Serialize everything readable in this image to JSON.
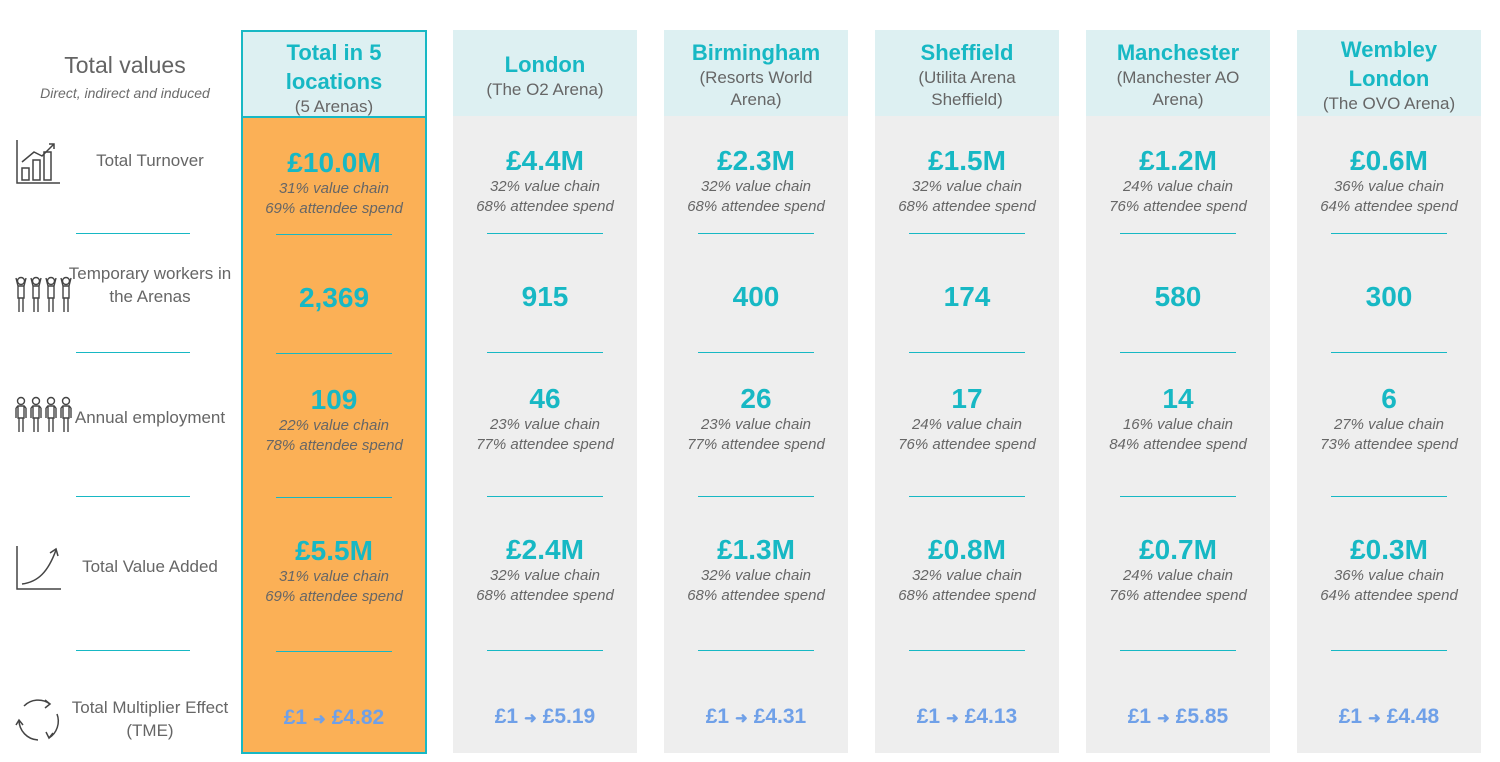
{
  "side": {
    "title": "Total values",
    "subtitle": "Direct, indirect and induced",
    "rows": [
      {
        "label": "Total Turnover",
        "icon": "bar-chart-icon"
      },
      {
        "label": "Temporary workers in the Arenas",
        "icon": "people-group-icon"
      },
      {
        "label": "Annual employment",
        "icon": "people-group-icon"
      },
      {
        "label": "Total Value Added",
        "icon": "growth-curve-icon"
      },
      {
        "label": "Total Multiplier Effect (TME)",
        "icon": "cycle-arrows-icon"
      }
    ]
  },
  "columns": [
    {
      "title": "Total in 5 locations",
      "title_lines": [
        "Total in 5",
        "locations"
      ],
      "subtitle_lines": [
        "(5 Arenas)"
      ],
      "turnover": "£10.0M",
      "turnover_vc": "31% value chain",
      "turnover_as": "69% attendee spend",
      "temp_workers": "2,369",
      "employment": "109",
      "employment_vc": "22% value chain",
      "employment_as": "78% attendee spend",
      "gva": "£5.5M",
      "gva_vc": "31% value chain",
      "gva_as": "69% attendee spend",
      "tme_from": "£1",
      "tme_to": "£4.82"
    },
    {
      "title_lines": [
        "London"
      ],
      "subtitle_lines": [
        "(The O2 Arena)"
      ],
      "turnover": "£4.4M",
      "turnover_vc": "32% value chain",
      "turnover_as": "68% attendee spend",
      "temp_workers": "915",
      "employment": "46",
      "employment_vc": "23% value chain",
      "employment_as": "77% attendee spend",
      "gva": "£2.4M",
      "gva_vc": "32% value chain",
      "gva_as": "68% attendee spend",
      "tme_from": "£1",
      "tme_to": "£5.19"
    },
    {
      "title_lines": [
        "Birmingham"
      ],
      "subtitle_lines": [
        "(Resorts World",
        "Arena)"
      ],
      "turnover": "£2.3M",
      "turnover_vc": "32% value chain",
      "turnover_as": "68% attendee spend",
      "temp_workers": "400",
      "employment": "26",
      "employment_vc": "23% value chain",
      "employment_as": "77% attendee spend",
      "gva": "£1.3M",
      "gva_vc": "32% value chain",
      "gva_as": "68% attendee spend",
      "tme_from": "£1",
      "tme_to": "£4.31"
    },
    {
      "title_lines": [
        "Sheffield"
      ],
      "subtitle_lines": [
        "(Utilita Arena",
        "Sheffield)"
      ],
      "turnover": "£1.5M",
      "turnover_vc": "32% value chain",
      "turnover_as": "68% attendee spend",
      "temp_workers": "174",
      "employment": "17",
      "employment_vc": "24% value chain",
      "employment_as": "76% attendee spend",
      "gva": "£0.8M",
      "gva_vc": "32% value chain",
      "gva_as": "68% attendee spend",
      "tme_from": "£1",
      "tme_to": "£4.13"
    },
    {
      "title_lines": [
        "Manchester"
      ],
      "subtitle_lines": [
        "(Manchester AO",
        "Arena)"
      ],
      "turnover": "£1.2M",
      "turnover_vc": "24% value chain",
      "turnover_as": "76% attendee spend",
      "temp_workers": "580",
      "employment": "14",
      "employment_vc": "16% value chain",
      "employment_as": "84% attendee spend",
      "gva": "£0.7M",
      "gva_vc": "24% value chain",
      "gva_as": "76% attendee spend",
      "tme_from": "£1",
      "tme_to": "£5.85"
    },
    {
      "title_lines": [
        "Wembley",
        "London"
      ],
      "subtitle_lines": [
        "(The OVO Arena)"
      ],
      "turnover": "£0.6M",
      "turnover_vc": "36% value chain",
      "turnover_as": "64% attendee spend",
      "temp_workers": "300",
      "employment": "6",
      "employment_vc": "27% value chain",
      "employment_as": "73% attendee spend",
      "gva": "£0.3M",
      "gva_vc": "36% value chain",
      "gva_as": "64% attendee spend",
      "tme_from": "£1",
      "tme_to": "£4.48"
    }
  ],
  "colors": {
    "accent": "#17b8c4",
    "total_bg": "#fbb056",
    "column_bg": "#eeeeee",
    "header_bg": "#ddf0f2",
    "tme": "#6fa0e8"
  }
}
